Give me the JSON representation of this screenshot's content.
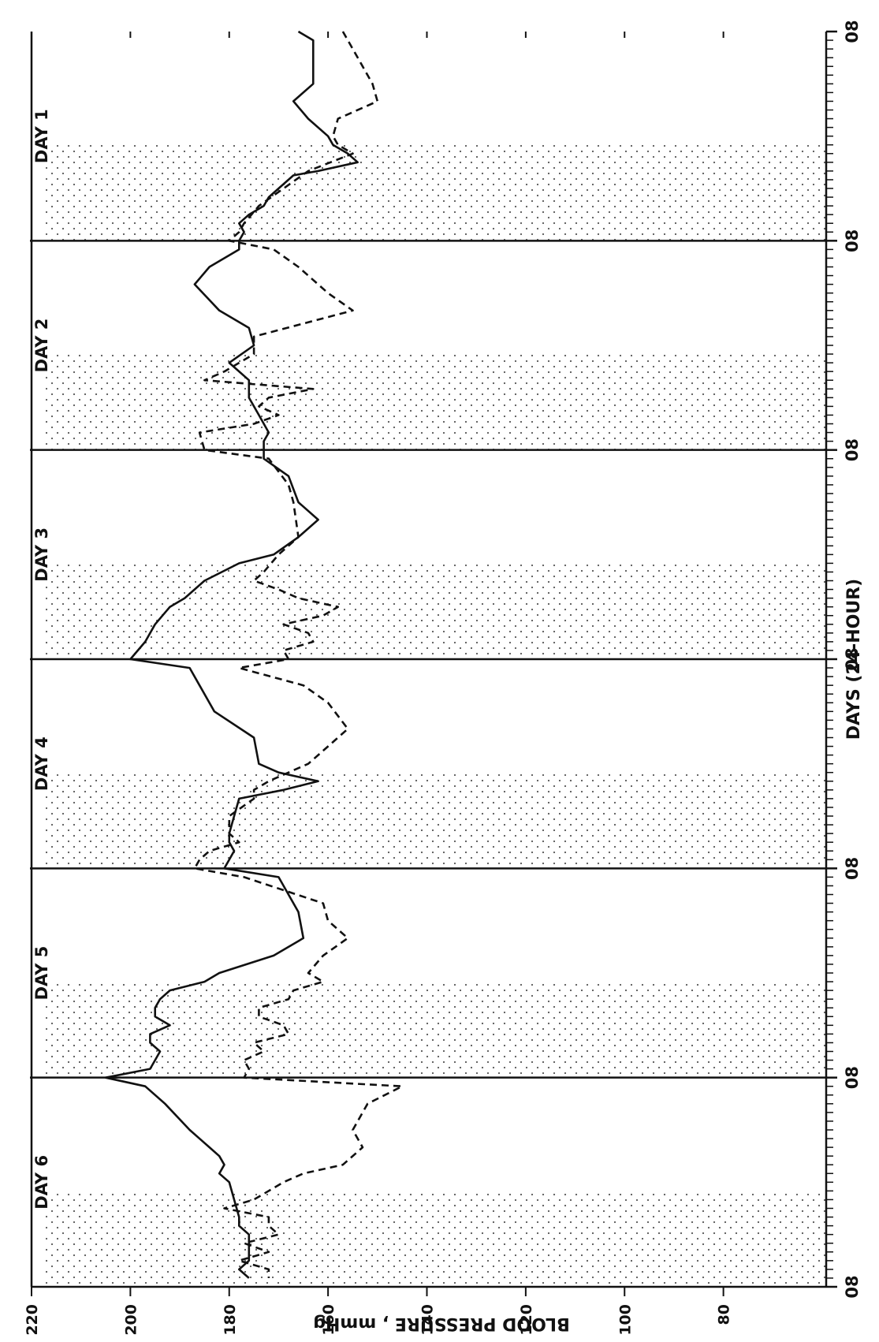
{
  "chart_data": {
    "type": "line",
    "xlabel": "DAYS (24-HOUR)",
    "ylabel": "BLOOD PRESSURE , mmHg",
    "ylim": [
      60,
      220
    ],
    "yticks": [
      80,
      100,
      120,
      140,
      160,
      180,
      200,
      220
    ],
    "xlim": [
      0,
      144
    ],
    "xticks": [
      0,
      24,
      48,
      72,
      96,
      120,
      144
    ],
    "xtick_labels": [
      "08",
      "08",
      "08",
      "08",
      "08",
      "08",
      "08"
    ],
    "day_labels": [
      "DAY 1",
      "DAY 2",
      "DAY 3",
      "DAY 4",
      "DAY 5",
      "DAY 6"
    ],
    "night_shading": [
      [
        13,
        24
      ],
      [
        37,
        48
      ],
      [
        61,
        72
      ],
      [
        85,
        96
      ],
      [
        109,
        120
      ],
      [
        133,
        144
      ]
    ],
    "orientation": "rotated 90° (time runs top-to-bottom, blood pressure increases to the left)",
    "series": [
      {
        "style": "solid",
        "color": "#111111",
        "points": [
          [
            0,
            166
          ],
          [
            1,
            163
          ],
          [
            3,
            163
          ],
          [
            6,
            163
          ],
          [
            8,
            167
          ],
          [
            10,
            164
          ],
          [
            12,
            160
          ],
          [
            13,
            159
          ],
          [
            14,
            156
          ],
          [
            15,
            154
          ],
          [
            16,
            162
          ],
          [
            16.5,
            167
          ],
          [
            18,
            170
          ],
          [
            19,
            172
          ],
          [
            20,
            173
          ],
          [
            21,
            176
          ],
          [
            22,
            178
          ],
          [
            23,
            177
          ],
          [
            24,
            178
          ],
          [
            25,
            178
          ],
          [
            27,
            184
          ],
          [
            29,
            187
          ],
          [
            32,
            182
          ],
          [
            34,
            176
          ],
          [
            36,
            175
          ],
          [
            38,
            180
          ],
          [
            40,
            176
          ],
          [
            41,
            176
          ],
          [
            42,
            176
          ],
          [
            44,
            174
          ],
          [
            46,
            172
          ],
          [
            47,
            173
          ],
          [
            48,
            173
          ],
          [
            49,
            173
          ],
          [
            51,
            168
          ],
          [
            54,
            166
          ],
          [
            56,
            162
          ],
          [
            58,
            166
          ],
          [
            60,
            171
          ],
          [
            61,
            178
          ],
          [
            63,
            185
          ],
          [
            65,
            189
          ],
          [
            66,
            192
          ],
          [
            68,
            195
          ],
          [
            70,
            197
          ],
          [
            72,
            200
          ],
          [
            73,
            188
          ],
          [
            75,
            186
          ],
          [
            78,
            183
          ],
          [
            81,
            175
          ],
          [
            84,
            174
          ],
          [
            85,
            170
          ],
          [
            86,
            162
          ],
          [
            87,
            169
          ],
          [
            88,
            178
          ],
          [
            90,
            179
          ],
          [
            92,
            180
          ],
          [
            93,
            180
          ],
          [
            94,
            179
          ],
          [
            95,
            180
          ],
          [
            96,
            181
          ],
          [
            97,
            170
          ],
          [
            101,
            166
          ],
          [
            104,
            165
          ],
          [
            106,
            171
          ],
          [
            108,
            182
          ],
          [
            109,
            185
          ],
          [
            110,
            192
          ],
          [
            111,
            194
          ],
          [
            112,
            195
          ],
          [
            113,
            195
          ],
          [
            114,
            192
          ],
          [
            115,
            196
          ],
          [
            116,
            196
          ],
          [
            117,
            194
          ],
          [
            118,
            195
          ],
          [
            119,
            196
          ],
          [
            120,
            205
          ],
          [
            121,
            197
          ],
          [
            123,
            193
          ],
          [
            126,
            188
          ],
          [
            128,
            184
          ],
          [
            129,
            182
          ],
          [
            130,
            181
          ],
          [
            131,
            182
          ],
          [
            132,
            180
          ],
          [
            134,
            179
          ],
          [
            136,
            178
          ],
          [
            137,
            178
          ],
          [
            138,
            176
          ],
          [
            139,
            176
          ],
          [
            140,
            176
          ],
          [
            141,
            176
          ],
          [
            142,
            178
          ],
          [
            143,
            176
          ]
        ]
      },
      {
        "style": "dashed",
        "color": "#111111",
        "points": [
          [
            0,
            157
          ],
          [
            2,
            155
          ],
          [
            4,
            153
          ],
          [
            6,
            151
          ],
          [
            8,
            150
          ],
          [
            10,
            158
          ],
          [
            12,
            159
          ],
          [
            13,
            158
          ],
          [
            14,
            155
          ],
          [
            16,
            164
          ],
          [
            18,
            169
          ],
          [
            20,
            174
          ],
          [
            22,
            177
          ],
          [
            23,
            178
          ],
          [
            24,
            180
          ],
          [
            25,
            171
          ],
          [
            27,
            166
          ],
          [
            30,
            160
          ],
          [
            32,
            155
          ],
          [
            35,
            175
          ],
          [
            37,
            175
          ],
          [
            39,
            181
          ],
          [
            40,
            185
          ],
          [
            41,
            163
          ],
          [
            42,
            172
          ],
          [
            43,
            174
          ],
          [
            44,
            170
          ],
          [
            45,
            175
          ],
          [
            46,
            186
          ],
          [
            48,
            185
          ],
          [
            49,
            172
          ],
          [
            52,
            168
          ],
          [
            54,
            167
          ],
          [
            58,
            166
          ],
          [
            60,
            170
          ],
          [
            62,
            173
          ],
          [
            63,
            175
          ],
          [
            64,
            170
          ],
          [
            65,
            166
          ],
          [
            66,
            158
          ],
          [
            67,
            161
          ],
          [
            68,
            169
          ],
          [
            69,
            164
          ],
          [
            70,
            163
          ],
          [
            71,
            169
          ],
          [
            72,
            168
          ],
          [
            73,
            178
          ],
          [
            75,
            165
          ],
          [
            77,
            160
          ],
          [
            80,
            156
          ],
          [
            82,
            160
          ],
          [
            84,
            164
          ],
          [
            86,
            172
          ],
          [
            87,
            175
          ],
          [
            88,
            175
          ],
          [
            90,
            180
          ],
          [
            92,
            180
          ],
          [
            93,
            178
          ],
          [
            94,
            184
          ],
          [
            95,
            186
          ],
          [
            96,
            187
          ],
          [
            97,
            177
          ],
          [
            100,
            161
          ],
          [
            102,
            160
          ],
          [
            104,
            156
          ],
          [
            106,
            161
          ],
          [
            108,
            164
          ],
          [
            109,
            161
          ],
          [
            110,
            167
          ],
          [
            111,
            168
          ],
          [
            112,
            174
          ],
          [
            113,
            174
          ],
          [
            114,
            169
          ],
          [
            115,
            168
          ],
          [
            116,
            175
          ],
          [
            117,
            173
          ],
          [
            118,
            177
          ],
          [
            119,
            176
          ],
          [
            120,
            177
          ],
          [
            121,
            145
          ],
          [
            123,
            152
          ],
          [
            126,
            155
          ],
          [
            128,
            153
          ],
          [
            130,
            157
          ],
          [
            131,
            165
          ],
          [
            132,
            169
          ],
          [
            134,
            175
          ],
          [
            135,
            181
          ],
          [
            136,
            172
          ],
          [
            137,
            172
          ],
          [
            138,
            170
          ],
          [
            139,
            177
          ],
          [
            140,
            172
          ],
          [
            141,
            178
          ],
          [
            142,
            172
          ],
          [
            143,
            172
          ]
        ]
      }
    ]
  }
}
